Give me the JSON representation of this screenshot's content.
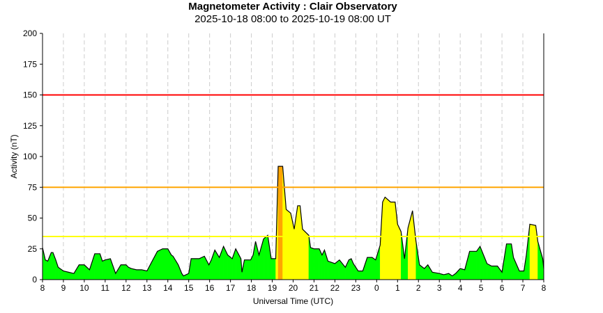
{
  "chart_data": {
    "type": "area",
    "title": "Magnetometer Activity : Clair Observatory",
    "subtitle": "2025-10-18 08:00 to 2025-10-19 08:00 UT",
    "xlabel": "Universal Time (UTC)",
    "ylabel": "Activity (nT)",
    "ylim": [
      0,
      200
    ],
    "yticks": [
      0,
      25,
      50,
      75,
      100,
      125,
      150,
      175,
      200
    ],
    "xticks": [
      "8",
      "9",
      "10",
      "11",
      "12",
      "13",
      "14",
      "15",
      "16",
      "17",
      "18",
      "19",
      "20",
      "21",
      "22",
      "23",
      "0",
      "1",
      "2",
      "3",
      "4",
      "5",
      "6",
      "7",
      "8"
    ],
    "grid": "vertical dashed at each hour",
    "thresholds": [
      {
        "value": 150,
        "color": "#ff0000"
      },
      {
        "value": 75,
        "color": "#ffa500"
      },
      {
        "value": 35,
        "color": "#ffff00"
      }
    ],
    "fill_colors": {
      "below_35": "#00ff00",
      "35_to_75": "#ffff00",
      "above_75": "#ffa500"
    },
    "points": [
      [
        "2025-10-18 08:00",
        26
      ],
      [
        "2025-10-18 08:08",
        16
      ],
      [
        "2025-10-18 08:15",
        15
      ],
      [
        "2025-10-18 08:25",
        22
      ],
      [
        "2025-10-18 08:30",
        22
      ],
      [
        "2025-10-18 08:38",
        16
      ],
      [
        "2025-10-18 08:45",
        10
      ],
      [
        "2025-10-18 09:00",
        7
      ],
      [
        "2025-10-18 09:15",
        6
      ],
      [
        "2025-10-18 09:30",
        5
      ],
      [
        "2025-10-18 09:45",
        12
      ],
      [
        "2025-10-18 10:00",
        12
      ],
      [
        "2025-10-18 10:15",
        8
      ],
      [
        "2025-10-18 10:30",
        21
      ],
      [
        "2025-10-18 10:45",
        21
      ],
      [
        "2025-10-18 10:52",
        15
      ],
      [
        "2025-10-18 11:00",
        16
      ],
      [
        "2025-10-18 11:15",
        17
      ],
      [
        "2025-10-18 11:30",
        5
      ],
      [
        "2025-10-18 11:45",
        12
      ],
      [
        "2025-10-18 12:00",
        12
      ],
      [
        "2025-10-18 12:07",
        10
      ],
      [
        "2025-10-18 12:15",
        9
      ],
      [
        "2025-10-18 12:30",
        8
      ],
      [
        "2025-10-18 12:45",
        8
      ],
      [
        "2025-10-18 13:00",
        7
      ],
      [
        "2025-10-18 13:15",
        15
      ],
      [
        "2025-10-18 13:30",
        23
      ],
      [
        "2025-10-18 13:45",
        25
      ],
      [
        "2025-10-18 14:00",
        25
      ],
      [
        "2025-10-18 14:10",
        20
      ],
      [
        "2025-10-18 14:15",
        19
      ],
      [
        "2025-10-18 14:30",
        12
      ],
      [
        "2025-10-18 14:40",
        5
      ],
      [
        "2025-10-18 14:45",
        3
      ],
      [
        "2025-10-18 15:00",
        5
      ],
      [
        "2025-10-18 15:07",
        17
      ],
      [
        "2025-10-18 15:30",
        17
      ],
      [
        "2025-10-18 15:45",
        19
      ],
      [
        "2025-10-18 15:58",
        12
      ],
      [
        "2025-10-18 16:05",
        16
      ],
      [
        "2025-10-18 16:15",
        24
      ],
      [
        "2025-10-18 16:28",
        18
      ],
      [
        "2025-10-18 16:40",
        27
      ],
      [
        "2025-10-18 16:52",
        20
      ],
      [
        "2025-10-18 17:05",
        17
      ],
      [
        "2025-10-18 17:15",
        25
      ],
      [
        "2025-10-18 17:30",
        17
      ],
      [
        "2025-10-18 17:33",
        6
      ],
      [
        "2025-10-18 17:40",
        16
      ],
      [
        "2025-10-18 17:58",
        16
      ],
      [
        "2025-10-18 18:05",
        20
      ],
      [
        "2025-10-18 18:12",
        31
      ],
      [
        "2025-10-18 18:22",
        20
      ],
      [
        "2025-10-18 18:35",
        33
      ],
      [
        "2025-10-18 18:47",
        36
      ],
      [
        "2025-10-18 18:57",
        17
      ],
      [
        "2025-10-18 19:10",
        17
      ],
      [
        "2025-10-18 19:17",
        92
      ],
      [
        "2025-10-18 19:30",
        92
      ],
      [
        "2025-10-18 19:40",
        57
      ],
      [
        "2025-10-18 19:53",
        54
      ],
      [
        "2025-10-18 20:03",
        41
      ],
      [
        "2025-10-18 20:13",
        60
      ],
      [
        "2025-10-18 20:20",
        60
      ],
      [
        "2025-10-18 20:27",
        41
      ],
      [
        "2025-10-18 20:45",
        36
      ],
      [
        "2025-10-18 20:50",
        26
      ],
      [
        "2025-10-18 21:00",
        25
      ],
      [
        "2025-10-18 21:15",
        25
      ],
      [
        "2025-10-18 21:23",
        20
      ],
      [
        "2025-10-18 21:30",
        24
      ],
      [
        "2025-10-18 21:40",
        15
      ],
      [
        "2025-10-18 22:00",
        13
      ],
      [
        "2025-10-18 22:13",
        16
      ],
      [
        "2025-10-18 22:30",
        10
      ],
      [
        "2025-10-18 22:40",
        16
      ],
      [
        "2025-10-18 22:47",
        17
      ],
      [
        "2025-10-18 22:53",
        13
      ],
      [
        "2025-10-18 23:07",
        7
      ],
      [
        "2025-10-18 23:20",
        7
      ],
      [
        "2025-10-18 23:33",
        18
      ],
      [
        "2025-10-18 23:47",
        18
      ],
      [
        "2025-10-18 23:57",
        16
      ],
      [
        "2025-10-19 00:10",
        28
      ],
      [
        "2025-10-19 00:17",
        63
      ],
      [
        "2025-10-19 00:24",
        67
      ],
      [
        "2025-10-19 00:40",
        63
      ],
      [
        "2025-10-19 00:53",
        63
      ],
      [
        "2025-10-19 01:00",
        45
      ],
      [
        "2025-10-19 01:10",
        39
      ],
      [
        "2025-10-19 01:20",
        17
      ],
      [
        "2025-10-19 01:30",
        42
      ],
      [
        "2025-10-19 01:43",
        56
      ],
      [
        "2025-10-19 01:53",
        31
      ],
      [
        "2025-10-19 02:03",
        12
      ],
      [
        "2025-10-19 02:17",
        9
      ],
      [
        "2025-10-19 02:27",
        12
      ],
      [
        "2025-10-19 02:40",
        6
      ],
      [
        "2025-10-19 03:00",
        5
      ],
      [
        "2025-10-19 03:13",
        4
      ],
      [
        "2025-10-19 03:27",
        5
      ],
      [
        "2025-10-19 03:37",
        3
      ],
      [
        "2025-10-19 03:47",
        5
      ],
      [
        "2025-10-19 04:00",
        9
      ],
      [
        "2025-10-19 04:13",
        8
      ],
      [
        "2025-10-19 04:27",
        23
      ],
      [
        "2025-10-19 04:47",
        23
      ],
      [
        "2025-10-19 04:57",
        27
      ],
      [
        "2025-10-19 05:07",
        20
      ],
      [
        "2025-10-19 05:17",
        13
      ],
      [
        "2025-10-19 05:30",
        11
      ],
      [
        "2025-10-19 05:47",
        11
      ],
      [
        "2025-10-19 06:00",
        6
      ],
      [
        "2025-10-19 06:13",
        29
      ],
      [
        "2025-10-19 06:27",
        29
      ],
      [
        "2025-10-19 06:33",
        18
      ],
      [
        "2025-10-19 06:50",
        7
      ],
      [
        "2025-10-19 07:03",
        7
      ],
      [
        "2025-10-19 07:10",
        20
      ],
      [
        "2025-10-19 07:20",
        45
      ],
      [
        "2025-10-19 07:37",
        44
      ],
      [
        "2025-10-19 07:43",
        31
      ],
      [
        "2025-10-19 07:57",
        17
      ],
      [
        "2025-10-19 08:00",
        9
      ]
    ]
  }
}
